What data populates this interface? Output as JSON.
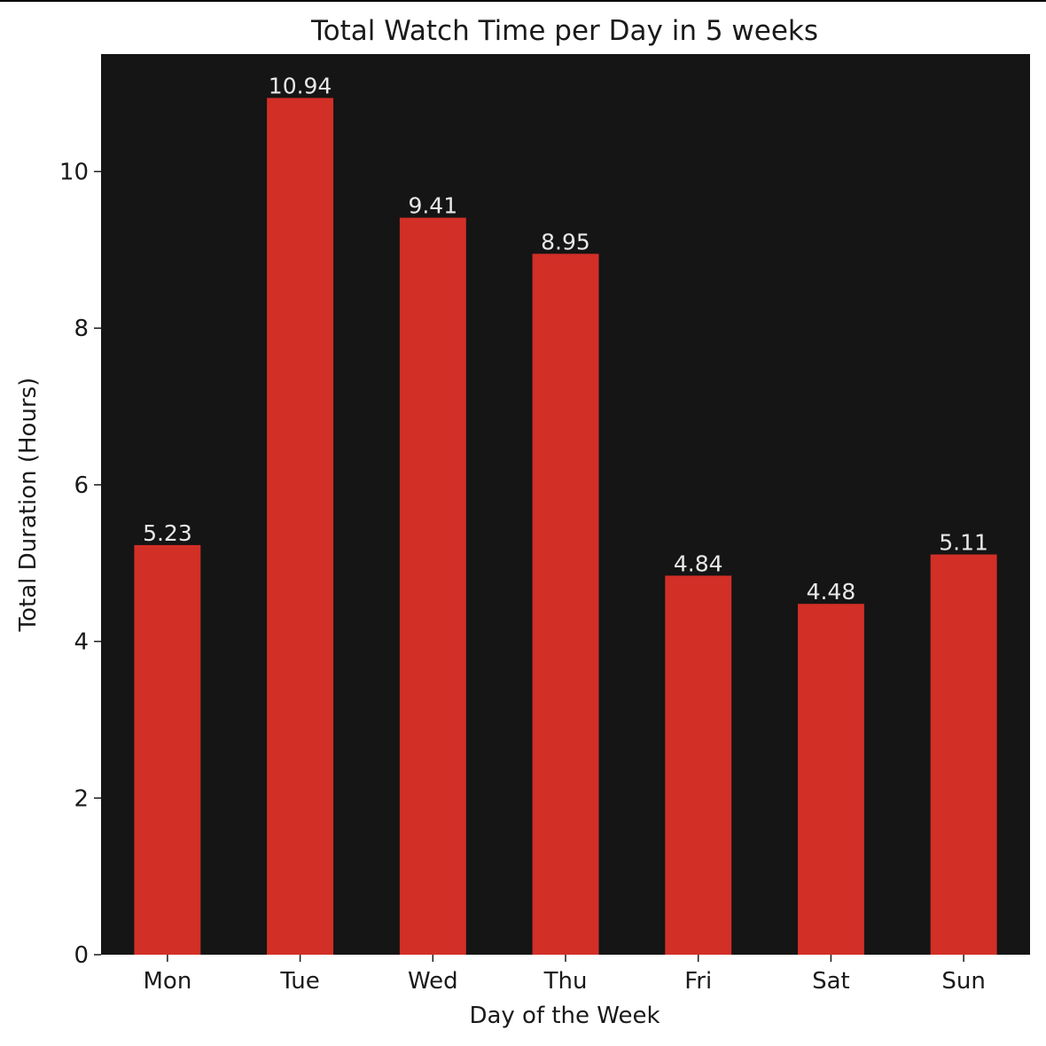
{
  "chart_data": {
    "type": "bar",
    "title": "Total Watch Time per Day in 5 weeks",
    "xlabel": "Day of the Week",
    "ylabel": "Total Duration (Hours)",
    "categories": [
      "Mon",
      "Tue",
      "Wed",
      "Thu",
      "Fri",
      "Sat",
      "Sun"
    ],
    "values": [
      5.23,
      10.94,
      9.41,
      8.95,
      4.84,
      4.48,
      5.11
    ],
    "value_labels": [
      "5.23",
      "10.94",
      "9.41",
      "8.95",
      "4.84",
      "4.48",
      "5.11"
    ],
    "yticks": [
      0,
      2,
      4,
      6,
      8,
      10
    ],
    "ylim": [
      0,
      11.5
    ],
    "grid": false,
    "legend": "none",
    "colors": {
      "bar": "#d22f27",
      "plot_background": "#151515",
      "figure_background": "#ffffff",
      "value_label": "#e8e8e8",
      "text": "#1a1a1a"
    }
  }
}
